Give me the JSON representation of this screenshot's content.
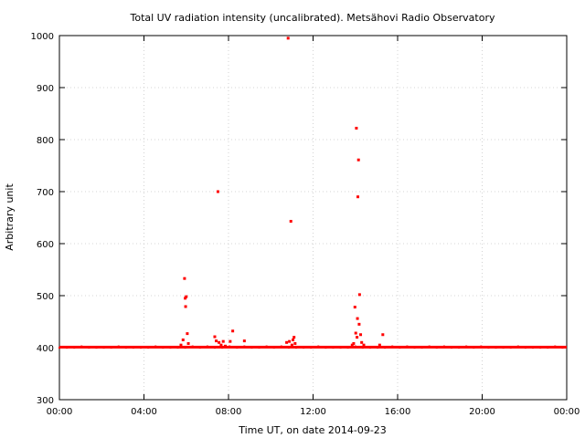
{
  "chart_data": {
    "type": "scatter",
    "title": "Total UV radiation intensity (uncalibrated). Metsähovi Radio Observatory",
    "xlabel": "Time UT, on date 2014-09-23",
    "ylabel": "Arbitrary unit",
    "x_unit": "hours UT",
    "xlim": [
      0,
      24
    ],
    "ylim": [
      300,
      1000
    ],
    "x_ticks": [
      {
        "value": 0,
        "label": "00:00"
      },
      {
        "value": 4,
        "label": "04:00"
      },
      {
        "value": 8,
        "label": "08:00"
      },
      {
        "value": 12,
        "label": "12:00"
      },
      {
        "value": 16,
        "label": "16:00"
      },
      {
        "value": 20,
        "label": "20:00"
      },
      {
        "value": 24,
        "label": "00:00"
      }
    ],
    "y_ticks": [
      {
        "value": 300,
        "label": "300"
      },
      {
        "value": 400,
        "label": "400"
      },
      {
        "value": 500,
        "label": "500"
      },
      {
        "value": 600,
        "label": "600"
      },
      {
        "value": 700,
        "label": "700"
      },
      {
        "value": 800,
        "label": "800"
      },
      {
        "value": 900,
        "label": "900"
      },
      {
        "value": 1000,
        "label": "1000"
      }
    ],
    "grid": true,
    "marker_color": "#ff0000",
    "baseline": {
      "value": 401,
      "x_range": [
        0,
        24
      ]
    },
    "series": [
      {
        "points": [
          [
            5.75,
            405
          ],
          [
            5.85,
            415
          ],
          [
            5.92,
            533
          ],
          [
            5.95,
            495
          ],
          [
            5.97,
            479
          ],
          [
            6.0,
            498
          ],
          [
            6.05,
            427
          ],
          [
            6.1,
            408
          ],
          [
            7.35,
            421
          ],
          [
            7.42,
            413
          ],
          [
            7.5,
            700
          ],
          [
            7.55,
            410
          ],
          [
            7.65,
            405
          ],
          [
            7.75,
            412
          ],
          [
            7.85,
            403
          ],
          [
            8.08,
            412
          ],
          [
            8.2,
            432
          ],
          [
            8.75,
            413
          ],
          [
            10.75,
            410
          ],
          [
            10.82,
            995
          ],
          [
            10.88,
            412
          ],
          [
            10.95,
            643
          ],
          [
            11.0,
            405
          ],
          [
            11.05,
            415
          ],
          [
            11.1,
            420
          ],
          [
            11.15,
            408
          ],
          [
            13.85,
            405
          ],
          [
            13.92,
            408
          ],
          [
            13.98,
            478
          ],
          [
            14.02,
            428
          ],
          [
            14.05,
            822
          ],
          [
            14.08,
            420
          ],
          [
            14.1,
            456
          ],
          [
            14.12,
            690
          ],
          [
            14.15,
            761
          ],
          [
            14.18,
            445
          ],
          [
            14.2,
            502
          ],
          [
            14.25,
            425
          ],
          [
            14.3,
            410
          ],
          [
            14.4,
            405
          ],
          [
            15.15,
            405
          ],
          [
            15.3,
            425
          ]
        ]
      }
    ]
  }
}
